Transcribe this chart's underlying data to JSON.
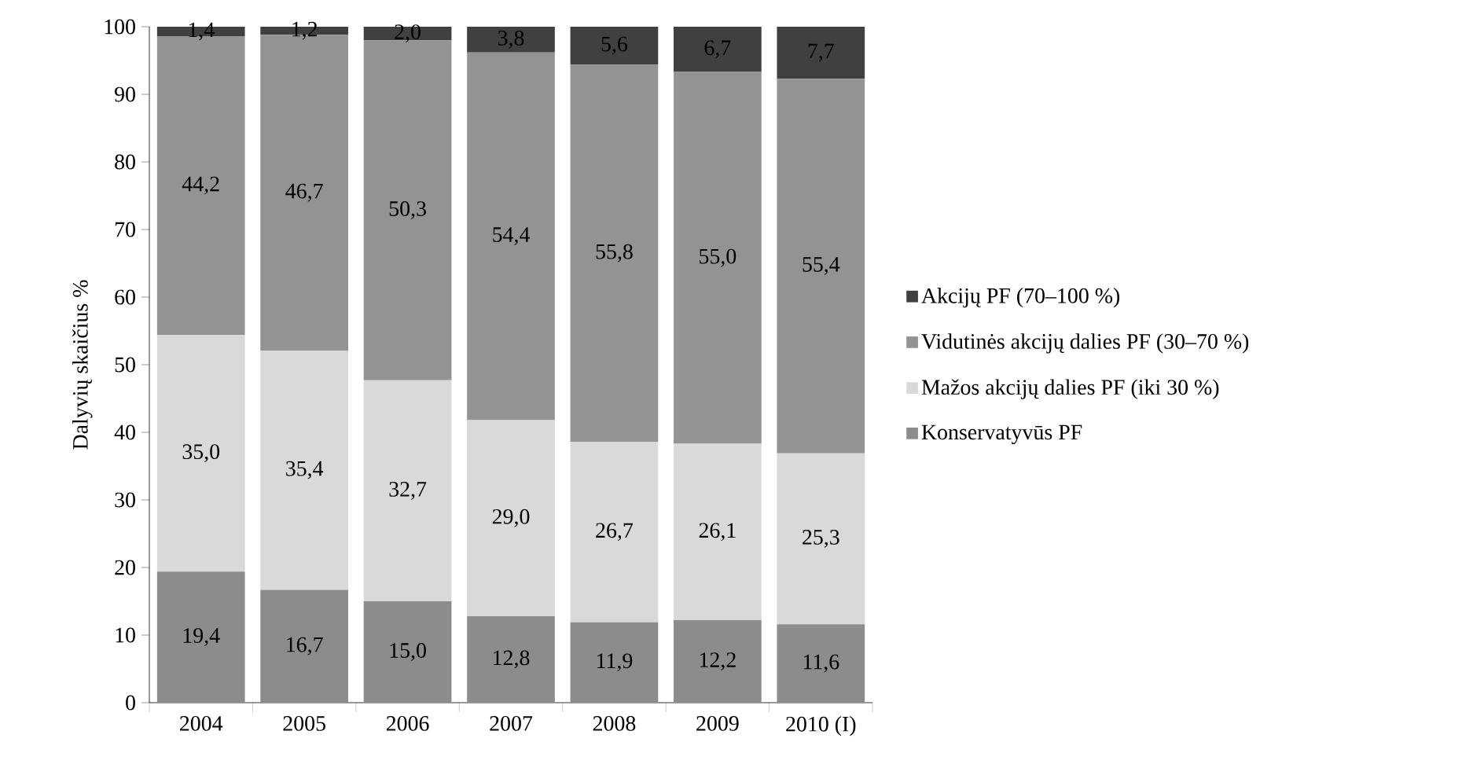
{
  "chart_data": {
    "type": "bar",
    "stacked": true,
    "ylabel": "Dalyvių skaičius %",
    "categories": [
      "2004",
      "2005",
      "2006",
      "2007",
      "2008",
      "2009",
      "2010 (I)"
    ],
    "ylim": [
      0,
      100
    ],
    "yticks": [
      0,
      10,
      20,
      30,
      40,
      50,
      60,
      70,
      80,
      90,
      100
    ],
    "legend": "right",
    "series": [
      {
        "name": "Konservatyvūs PF",
        "color": "#8c8c8c",
        "values": [
          19.4,
          16.7,
          15.0,
          12.8,
          11.9,
          12.2,
          11.6
        ],
        "value_labels": [
          "19,4",
          "16,7",
          "15,0",
          "12,8",
          "11,9",
          "12,2",
          "11,6"
        ]
      },
      {
        "name": "Mažos akcijų dalies PF (iki 30 %)",
        "color": "#d9d9d9",
        "values": [
          35.0,
          35.4,
          32.7,
          29.0,
          26.7,
          26.1,
          25.3
        ],
        "value_labels": [
          "35,0",
          "35,4",
          "32,7",
          "29,0",
          "26,7",
          "26,1",
          "25,3"
        ]
      },
      {
        "name": "Vidutinės akcijų dalies PF (30–70 %)",
        "color": "#939393",
        "values": [
          44.2,
          46.7,
          50.3,
          54.4,
          55.8,
          55.0,
          55.4
        ],
        "value_labels": [
          "44,2",
          "46,7",
          "50,3",
          "54,4",
          "55,8",
          "55,0",
          "55,4"
        ]
      },
      {
        "name": "Akcijų PF (70–100 %)",
        "color": "#404040",
        "values": [
          1.4,
          1.2,
          2.0,
          3.8,
          5.6,
          6.7,
          7.7
        ],
        "value_labels": [
          "1,4",
          "1,2",
          "2,0",
          "3,8",
          "5,6",
          "6,7",
          "7,7"
        ]
      }
    ]
  }
}
